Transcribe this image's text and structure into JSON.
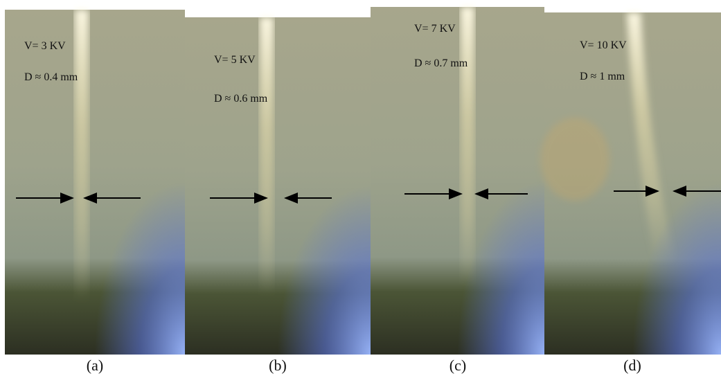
{
  "panels": [
    {
      "voltage": "V= 3 KV",
      "diameter": "D ≈ 0.4 mm",
      "caption": "(a)"
    },
    {
      "voltage": "V= 5 KV",
      "diameter": "D  ≈ 0.6  mm",
      "caption": "(b)"
    },
    {
      "voltage": "V= 7 KV",
      "diameter": "D ≈ 0.7 mm",
      "caption": "(c)"
    },
    {
      "voltage": "V= 10 KV",
      "diameter": "D ≈ 1 mm",
      "caption": "(d)"
    }
  ]
}
